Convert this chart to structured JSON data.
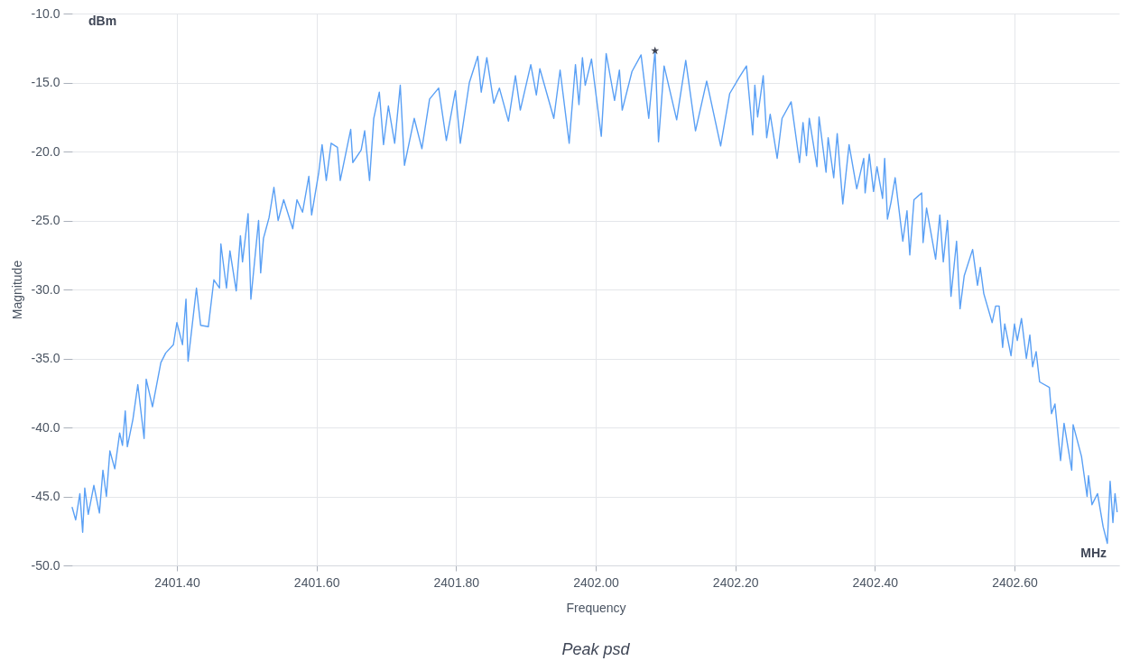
{
  "chart_data": {
    "type": "line",
    "title": "Peak psd",
    "xlabel": "Frequency",
    "ylabel": "Magnitude",
    "annotations": [
      "dBm",
      "MHz"
    ],
    "xlim": [
      2401.25,
      2402.75
    ],
    "xticks": [
      {
        "value": 2401.4,
        "label": "2401.40"
      },
      {
        "value": 2401.6,
        "label": "2401.60"
      },
      {
        "value": 2401.8,
        "label": "2401.80"
      },
      {
        "value": 2402.0,
        "label": "2402.00"
      },
      {
        "value": 2402.2,
        "label": "2402.20"
      },
      {
        "value": 2402.4,
        "label": "2402.40"
      },
      {
        "value": 2402.6,
        "label": "2402.60"
      }
    ],
    "ylim": [
      -50,
      -10
    ],
    "yticks": [
      {
        "value": -50,
        "label": "-50.0"
      },
      {
        "value": -45,
        "label": "-45.0"
      },
      {
        "value": -40,
        "label": "-40.0"
      },
      {
        "value": -35,
        "label": "-35.0"
      },
      {
        "value": -30,
        "label": "-30.0"
      },
      {
        "value": -25,
        "label": "-25.0"
      },
      {
        "value": -20,
        "label": "-20.0"
      },
      {
        "value": -15,
        "label": "-15.0"
      },
      {
        "value": -10,
        "label": "-10.0"
      }
    ],
    "grid": true,
    "marker": "none",
    "line_style": "solid",
    "series": [
      {
        "type": "line",
        "color": "#5aa0f5",
        "x": [
          2401.25,
          2401.255,
          2401.261,
          2401.265,
          2401.268,
          2401.273,
          2401.281,
          2401.289,
          2401.294,
          2401.299,
          2401.304,
          2401.311,
          2401.318,
          2401.322,
          2401.326,
          2401.329,
          2401.337,
          2401.344,
          2401.353,
          2401.356,
          2401.365,
          2401.377,
          2401.384,
          2401.395,
          2401.4,
          2401.408,
          2401.413,
          2401.416,
          2401.428,
          2401.434,
          2401.445,
          2401.453,
          2401.461,
          2401.463,
          2401.471,
          2401.476,
          2401.485,
          2401.491,
          2401.494,
          2401.502,
          2401.506,
          2401.517,
          2401.52,
          2401.524,
          2401.532,
          2401.539,
          2401.545,
          2401.553,
          2401.566,
          2401.572,
          2401.58,
          2401.589,
          2401.593,
          2401.603,
          2401.608,
          2401.614,
          2401.621,
          2401.63,
          2401.634,
          2401.649,
          2401.652,
          2401.664,
          2401.669,
          2401.676,
          2401.682,
          2401.69,
          2401.696,
          2401.703,
          2401.712,
          2401.72,
          2401.726,
          2401.74,
          2401.751,
          2401.762,
          2401.775,
          2401.786,
          2401.799,
          2401.806,
          2401.819,
          2401.831,
          2401.836,
          2401.844,
          2401.854,
          2401.862,
          2401.875,
          2401.885,
          2401.892,
          2401.907,
          2401.915,
          2401.92,
          2401.94,
          2401.949,
          2401.962,
          2401.971,
          2401.976,
          2401.981,
          2401.985,
          2401.994,
          2402.008,
          2402.015,
          2402.027,
          2402.034,
          2402.038,
          2402.052,
          2402.065,
          2402.076,
          2402.085,
          2402.09,
          2402.098,
          2402.116,
          2402.129,
          2402.143,
          2402.159,
          2402.179,
          2402.192,
          2402.206,
          2402.216,
          2402.225,
          2402.228,
          2402.232,
          2402.24,
          2402.245,
          2402.25,
          2402.26,
          2402.267,
          2402.28,
          2402.292,
          2402.297,
          2402.302,
          2402.306,
          2402.317,
          2402.32,
          2402.33,
          2402.333,
          2402.341,
          2402.346,
          2402.354,
          2402.363,
          2402.374,
          2402.384,
          2402.386,
          2402.392,
          2402.398,
          2402.403,
          2402.411,
          2402.414,
          2402.418,
          2402.423,
          2402.429,
          2402.44,
          2402.446,
          2402.45,
          2402.456,
          2402.467,
          2402.469,
          2402.474,
          2402.487,
          2402.493,
          2402.498,
          2402.504,
          2402.509,
          2402.517,
          2402.522,
          2402.528,
          2402.54,
          2402.547,
          2402.551,
          2402.556,
          2402.568,
          2402.573,
          2402.578,
          2402.583,
          2402.586,
          2402.595,
          2402.6,
          2402.604,
          2402.61,
          2402.617,
          2402.622,
          2402.626,
          2402.631,
          2402.636,
          2402.65,
          2402.653,
          2402.658,
          2402.666,
          2402.671,
          2402.682,
          2402.684,
          2402.696,
          2402.704,
          2402.706,
          2402.711,
          2402.719,
          2402.727,
          2402.733,
          2402.737,
          2402.741,
          2402.744,
          2402.747
        ],
        "values": [
          -45.8,
          -46.7,
          -44.8,
          -47.6,
          -44.4,
          -46.3,
          -44.2,
          -46.2,
          -43.1,
          -45.0,
          -41.7,
          -43.0,
          -40.4,
          -41.3,
          -38.8,
          -41.4,
          -39.4,
          -36.9,
          -40.8,
          -36.5,
          -38.5,
          -35.3,
          -34.6,
          -34.0,
          -32.4,
          -34.0,
          -30.7,
          -35.2,
          -29.9,
          -32.6,
          -32.7,
          -29.3,
          -29.9,
          -26.7,
          -29.9,
          -27.2,
          -30.1,
          -26.1,
          -28.0,
          -24.5,
          -30.7,
          -25.0,
          -28.8,
          -26.3,
          -24.8,
          -22.6,
          -25.0,
          -23.5,
          -25.6,
          -23.5,
          -24.4,
          -21.8,
          -24.6,
          -21.6,
          -19.5,
          -22.1,
          -19.4,
          -19.7,
          -22.1,
          -18.4,
          -20.8,
          -19.9,
          -18.5,
          -22.1,
          -17.6,
          -15.7,
          -19.5,
          -16.7,
          -19.4,
          -15.2,
          -21.0,
          -17.6,
          -19.8,
          -16.2,
          -15.4,
          -19.2,
          -15.6,
          -19.4,
          -15.0,
          -13.1,
          -15.7,
          -13.2,
          -16.5,
          -15.4,
          -17.8,
          -14.5,
          -17.0,
          -13.7,
          -15.9,
          -14.0,
          -17.6,
          -14.1,
          -19.4,
          -13.7,
          -16.6,
          -13.2,
          -15.2,
          -13.3,
          -18.9,
          -12.9,
          -16.3,
          -14.1,
          -17.0,
          -14.2,
          -13.0,
          -17.6,
          -12.7,
          -19.3,
          -13.8,
          -17.7,
          -13.4,
          -18.5,
          -14.9,
          -19.6,
          -15.8,
          -14.6,
          -13.8,
          -18.8,
          -15.2,
          -17.5,
          -14.5,
          -19.0,
          -17.3,
          -20.5,
          -17.6,
          -16.4,
          -20.8,
          -17.9,
          -20.3,
          -17.6,
          -21.1,
          -17.5,
          -21.5,
          -19.0,
          -21.9,
          -18.7,
          -23.8,
          -19.5,
          -22.7,
          -20.5,
          -23.0,
          -20.2,
          -22.9,
          -21.1,
          -23.4,
          -20.5,
          -24.9,
          -23.7,
          -21.9,
          -26.5,
          -24.3,
          -27.5,
          -23.5,
          -23.0,
          -26.6,
          -24.1,
          -27.8,
          -24.6,
          -28.0,
          -25.0,
          -30.5,
          -26.5,
          -31.4,
          -29.0,
          -27.1,
          -29.7,
          -28.4,
          -30.3,
          -32.4,
          -31.2,
          -31.2,
          -34.2,
          -32.5,
          -34.8,
          -32.5,
          -33.7,
          -32.1,
          -35.0,
          -33.3,
          -35.6,
          -34.5,
          -36.7,
          -37.1,
          -39.0,
          -38.3,
          -42.4,
          -39.7,
          -43.1,
          -39.8,
          -42.1,
          -45.0,
          -43.5,
          -45.6,
          -44.8,
          -47.2,
          -48.4,
          -43.9,
          -46.9,
          -44.8,
          -46.1
        ]
      },
      {
        "type": "scatter",
        "color": "#3c4150",
        "marker": "star",
        "x": [
          2402.085
        ],
        "values": [
          -12.7
        ]
      }
    ]
  }
}
